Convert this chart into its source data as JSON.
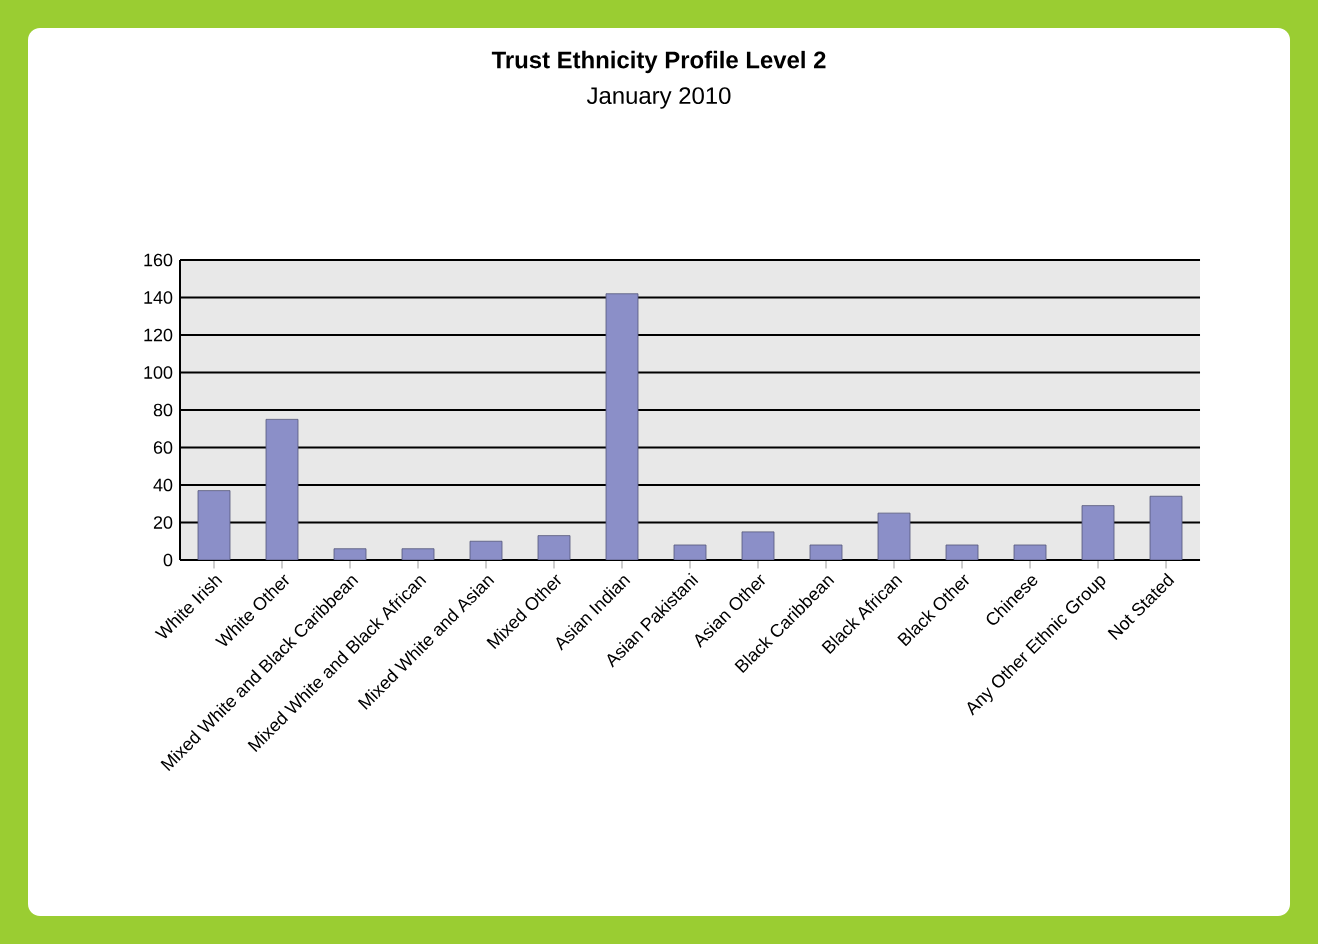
{
  "chart_data": {
    "type": "bar",
    "title": "Trust Ethnicity Profile Level 2",
    "subtitle": "January 2010",
    "categories": [
      "White Irish",
      "White Other",
      "Mixed White and Black Caribbean",
      "Mixed White and Black African",
      "Mixed White and Asian",
      "Mixed Other",
      "Asian Indian",
      "Asian Pakistani",
      "Asian Other",
      "Black Caribbean",
      "Black African",
      "Black Other",
      "Chinese",
      "Any Other Ethnic Group",
      "Not Stated"
    ],
    "values": [
      37,
      75,
      6,
      6,
      10,
      13,
      142,
      8,
      15,
      8,
      25,
      8,
      8,
      29,
      34
    ],
    "color": "#8b8fc8",
    "ylim": [
      0,
      160
    ],
    "yticks": [
      0,
      20,
      40,
      60,
      80,
      100,
      120,
      140,
      160
    ],
    "grid": "y"
  }
}
